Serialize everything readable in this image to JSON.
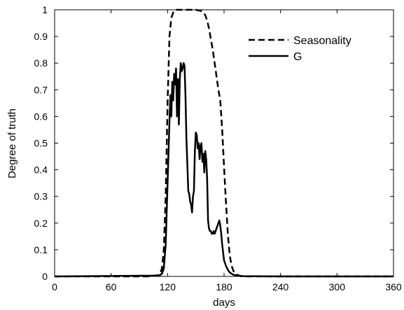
{
  "chart_data": {
    "type": "line",
    "xlabel": "days",
    "ylabel": "Degree of truth",
    "xlim": [
      0,
      360
    ],
    "ylim": [
      0,
      1
    ],
    "x_ticks": [
      0,
      60,
      120,
      180,
      240,
      300,
      360
    ],
    "y_ticks": [
      0,
      0.1,
      0.2,
      0.3,
      0.4,
      0.5,
      0.6,
      0.7,
      0.8,
      0.9,
      1
    ],
    "grid": false,
    "legend_position": "top-right",
    "series": [
      {
        "name": "Seasonality",
        "style": "dashed",
        "color": "#000000",
        "x": [
          0,
          100,
          110,
          112,
          114,
          116,
          118,
          120,
          122,
          124,
          126,
          128,
          130,
          140,
          150,
          156,
          158,
          160,
          162,
          164,
          166,
          168,
          170,
          172,
          174,
          176,
          178,
          180,
          182,
          184,
          186,
          188,
          190,
          192,
          194,
          196,
          198,
          200,
          360
        ],
        "y": [
          0,
          0,
          0.005,
          0.01,
          0.03,
          0.1,
          0.3,
          0.65,
          0.9,
          0.97,
          0.99,
          1,
          1,
          1,
          1,
          0.995,
          0.99,
          0.98,
          0.96,
          0.93,
          0.89,
          0.85,
          0.8,
          0.75,
          0.7,
          0.66,
          0.55,
          0.41,
          0.28,
          0.16,
          0.08,
          0.04,
          0.02,
          0.01,
          0.006,
          0.003,
          0.001,
          0,
          0
        ]
      },
      {
        "name": "G",
        "style": "solid",
        "color": "#000000",
        "x": [
          0,
          70,
          110,
          112,
          114,
          116,
          118,
          120,
          122,
          123,
          124,
          125,
          126,
          127,
          128,
          129,
          130,
          131,
          132,
          133,
          134,
          135,
          136,
          137,
          138,
          139,
          140,
          141,
          142,
          143,
          144,
          145,
          146,
          147,
          148,
          149,
          150,
          151,
          152,
          153,
          154,
          155,
          156,
          157,
          158,
          159,
          160,
          161,
          162,
          163,
          164,
          165,
          166,
          167,
          168,
          169,
          170,
          171,
          172,
          173,
          174,
          175,
          176,
          177,
          178,
          179,
          180,
          182,
          184,
          186,
          188,
          190,
          194,
          200,
          250,
          360
        ],
        "y": [
          0,
          0.002,
          0.003,
          0.005,
          0.01,
          0.03,
          0.12,
          0.35,
          0.58,
          0.68,
          0.6,
          0.73,
          0.66,
          0.76,
          0.72,
          0.78,
          0.6,
          0.74,
          0.57,
          0.74,
          0.8,
          0.77,
          0.78,
          0.8,
          0.79,
          0.68,
          0.52,
          0.42,
          0.32,
          0.31,
          0.28,
          0.27,
          0.24,
          0.3,
          0.32,
          0.47,
          0.54,
          0.53,
          0.48,
          0.5,
          0.44,
          0.49,
          0.5,
          0.43,
          0.46,
          0.39,
          0.47,
          0.44,
          0.37,
          0.21,
          0.18,
          0.17,
          0.17,
          0.16,
          0.16,
          0.17,
          0.16,
          0.17,
          0.18,
          0.19,
          0.2,
          0.21,
          0.19,
          0.16,
          0.12,
          0.09,
          0.06,
          0.04,
          0.025,
          0.015,
          0.01,
          0.006,
          0.003,
          0.001,
          0,
          0
        ]
      }
    ]
  }
}
